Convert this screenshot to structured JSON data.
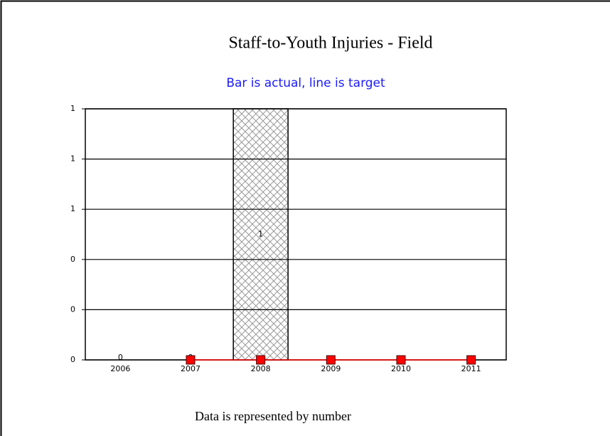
{
  "chart_data": {
    "type": "bar",
    "title": "Staff-to-Youth Injuries - Field",
    "subtitle": "Bar is actual, line is target",
    "footnote": "Data is represented by number",
    "categories": [
      "2006",
      "2007",
      "2008",
      "2009",
      "2010",
      "2011"
    ],
    "series": [
      {
        "name": "Bar is actual",
        "type": "bar",
        "color": "#a0a0a0",
        "values": [
          0,
          0,
          1,
          null,
          null,
          null
        ]
      },
      {
        "name": "line is target",
        "type": "line",
        "color": "#ff0000",
        "values": [
          null,
          0,
          0,
          0,
          0,
          0
        ]
      }
    ],
    "ylim": [
      0,
      1
    ],
    "yticks": [
      0,
      {
        "value": 0.2,
        "label": "0"
      },
      {
        "value": 0.4,
        "label": "0"
      },
      {
        "value": 0.6,
        "label": "1"
      },
      {
        "value": 0.8,
        "label": "1"
      },
      1
    ],
    "grid": true
  }
}
